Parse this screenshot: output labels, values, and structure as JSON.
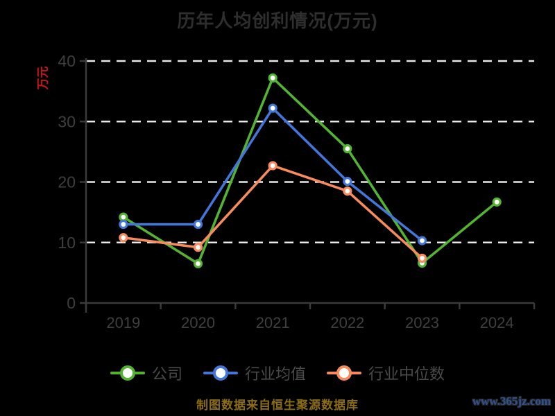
{
  "chart_data": {
    "type": "line",
    "title": "历年人均创利情况(万元)",
    "xlabel": "",
    "ylabel": "万元",
    "categories": [
      "2019",
      "2020",
      "2021",
      "2022",
      "2023",
      "2024"
    ],
    "series": [
      {
        "name": "公司",
        "color": "#53b332",
        "values": [
          14.2,
          6.5,
          37.2,
          25.5,
          6.6,
          16.7
        ]
      },
      {
        "name": "行业均值",
        "color": "#4476d9",
        "values": [
          13.0,
          13.0,
          32.2,
          20.1,
          10.3,
          null
        ]
      },
      {
        "name": "行业中位数",
        "color": "#f78b5e",
        "values": [
          10.8,
          9.2,
          22.7,
          18.5,
          7.4,
          null
        ]
      }
    ],
    "ylim": [
      0,
      40
    ],
    "yticks": [
      0,
      10,
      20,
      30,
      40
    ],
    "grid": "horizontal-dashed",
    "legend_position": "bottom"
  },
  "footer": {
    "source": "制图数据来自恒生聚源数据库",
    "watermark": "www.365jz.com"
  },
  "colors": {
    "background": "#000000",
    "grid": "#e8e8e8",
    "axis": "#3a3a3a",
    "tick_label": "#3f3f3f",
    "title": "#2e2e2e",
    "ylabel_red": "#cc1414",
    "legend_text": "#4a4a4a",
    "source_text": "#8c6d12",
    "watermark_text": "#2f5396"
  }
}
